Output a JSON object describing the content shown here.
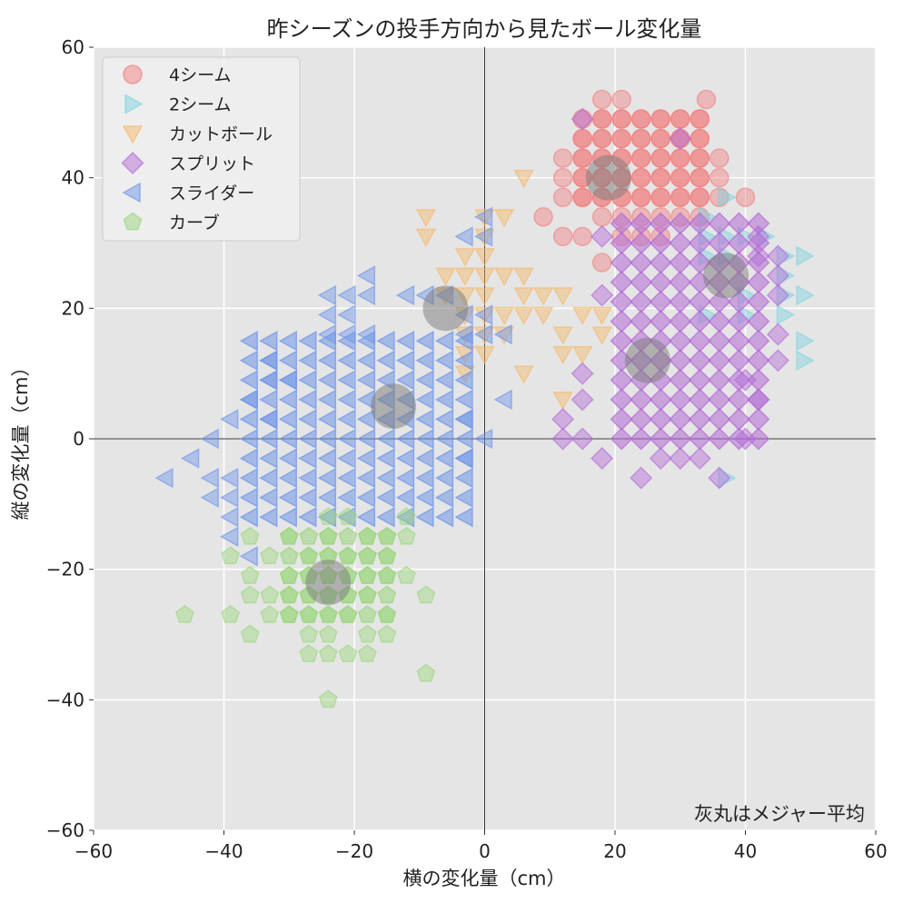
{
  "chart_data": {
    "type": "scatter",
    "title": "昨シーズンの投手方向から見たボール変化量",
    "xlabel": "横の変化量（cm）",
    "ylabel": "縦の変化量（cm）",
    "xlim": [
      -60,
      60
    ],
    "ylim": [
      -60,
      60
    ],
    "xticks": [
      -60,
      -40,
      -20,
      0,
      20,
      40,
      60
    ],
    "yticks": [
      -60,
      -40,
      -20,
      0,
      20,
      40,
      60
    ],
    "xtick_labels": [
      "−60",
      "−40",
      "−20",
      "0",
      "20",
      "40",
      "60"
    ],
    "ytick_labels": [
      "−60",
      "−40",
      "−20",
      "0",
      "20",
      "40",
      "60"
    ],
    "grid": true,
    "legend_position": "top-left",
    "annotation": "灰丸はメジャー平均",
    "series": [
      {
        "name": "4シーム",
        "marker": "circle",
        "color": "#f08080",
        "region": {
          "x": [
            12,
            38
          ],
          "y": [
            27,
            52
          ]
        },
        "points": [
          [
            18,
            52
          ],
          [
            21,
            52
          ],
          [
            34,
            52
          ],
          [
            18,
            49
          ],
          [
            21,
            49
          ],
          [
            24,
            49
          ],
          [
            27,
            49
          ],
          [
            30,
            49
          ],
          [
            33,
            49
          ],
          [
            15,
            46
          ],
          [
            18,
            46
          ],
          [
            21,
            46
          ],
          [
            24,
            46
          ],
          [
            27,
            46
          ],
          [
            30,
            46
          ],
          [
            33,
            46
          ],
          [
            12,
            43
          ],
          [
            15,
            43
          ],
          [
            18,
            43
          ],
          [
            21,
            43
          ],
          [
            24,
            43
          ],
          [
            27,
            43
          ],
          [
            30,
            43
          ],
          [
            33,
            43
          ],
          [
            36,
            43
          ],
          [
            12,
            40
          ],
          [
            15,
            40
          ],
          [
            18,
            40
          ],
          [
            21,
            40
          ],
          [
            24,
            40
          ],
          [
            27,
            40
          ],
          [
            30,
            40
          ],
          [
            33,
            40
          ],
          [
            36,
            40
          ],
          [
            12,
            37
          ],
          [
            15,
            37
          ],
          [
            18,
            37
          ],
          [
            21,
            37
          ],
          [
            24,
            37
          ],
          [
            27,
            37
          ],
          [
            30,
            37
          ],
          [
            33,
            37
          ],
          [
            36,
            37
          ],
          [
            40,
            37
          ],
          [
            18,
            34
          ],
          [
            21,
            34
          ],
          [
            24,
            34
          ],
          [
            27,
            34
          ],
          [
            30,
            34
          ],
          [
            33,
            34
          ],
          [
            9,
            34
          ],
          [
            12,
            31
          ],
          [
            15,
            31
          ],
          [
            21,
            31
          ],
          [
            24,
            31
          ],
          [
            27,
            31
          ],
          [
            18,
            27
          ]
        ],
        "dense_ranges": {
          "x": [
            15,
            33
          ],
          "y": [
            37,
            49
          ]
        }
      },
      {
        "name": "2シーム",
        "marker": "triangle-right",
        "color": "#7fd3e0",
        "region": {
          "x": [
            30,
            50
          ],
          "y": [
            -6,
            37
          ]
        },
        "points": [
          [
            37,
            37
          ],
          [
            34,
            34
          ],
          [
            34,
            31
          ],
          [
            37,
            31
          ],
          [
            40,
            31
          ],
          [
            43,
            31
          ],
          [
            46,
            28
          ],
          [
            49,
            28
          ],
          [
            34,
            28
          ],
          [
            37,
            28
          ],
          [
            46,
            25
          ],
          [
            40,
            22
          ],
          [
            46,
            22
          ],
          [
            49,
            22
          ],
          [
            46,
            19
          ],
          [
            49,
            15
          ],
          [
            49,
            12
          ],
          [
            37,
            -6
          ],
          [
            34,
            19
          ],
          [
            40,
            19
          ]
        ],
        "dense_ranges": {
          "x": [
            0,
            0
          ],
          "y": [
            0,
            0
          ]
        }
      },
      {
        "name": "カットボール",
        "marker": "triangle-down",
        "color": "#f5b869",
        "region": {
          "x": [
            -10,
            20
          ],
          "y": [
            6,
            40
          ]
        },
        "points": [
          [
            6,
            40
          ],
          [
            -9,
            34
          ],
          [
            3,
            34
          ],
          [
            0,
            34
          ],
          [
            -9,
            31
          ],
          [
            0,
            31
          ],
          [
            -3,
            28
          ],
          [
            0,
            28
          ],
          [
            -6,
            25
          ],
          [
            -3,
            25
          ],
          [
            0,
            25
          ],
          [
            3,
            25
          ],
          [
            6,
            25
          ],
          [
            -6,
            22
          ],
          [
            -3,
            22
          ],
          [
            0,
            22
          ],
          [
            6,
            22
          ],
          [
            9,
            22
          ],
          [
            12,
            22
          ],
          [
            -3,
            19
          ],
          [
            0,
            19
          ],
          [
            3,
            19
          ],
          [
            6,
            19
          ],
          [
            9,
            19
          ],
          [
            15,
            19
          ],
          [
            18,
            19
          ],
          [
            -3,
            16
          ],
          [
            0,
            16
          ],
          [
            3,
            16
          ],
          [
            12,
            16
          ],
          [
            18,
            16
          ],
          [
            -3,
            13
          ],
          [
            0,
            13
          ],
          [
            12,
            13
          ],
          [
            15,
            13
          ],
          [
            -3,
            10
          ],
          [
            6,
            10
          ],
          [
            12,
            6
          ]
        ],
        "dense_ranges": {
          "x": [
            0,
            0
          ],
          "y": [
            0,
            0
          ]
        }
      },
      {
        "name": "スプリット",
        "marker": "diamond",
        "color": "#b36bd6",
        "region": {
          "x": [
            12,
            45
          ],
          "y": [
            -6,
            49
          ]
        },
        "points": [
          [
            15,
            49
          ],
          [
            30,
            46
          ],
          [
            18,
            31
          ],
          [
            42,
            31
          ],
          [
            42,
            28
          ],
          [
            45,
            28
          ],
          [
            18,
            22
          ],
          [
            45,
            25
          ],
          [
            45,
            22
          ],
          [
            45,
            16
          ],
          [
            45,
            12
          ],
          [
            15,
            10
          ],
          [
            15,
            6
          ],
          [
            12,
            3
          ],
          [
            12,
            0
          ],
          [
            15,
            0
          ],
          [
            18,
            -3
          ],
          [
            24,
            -6
          ],
          [
            27,
            -3
          ],
          [
            30,
            -3
          ],
          [
            33,
            -3
          ],
          [
            36,
            -6
          ],
          [
            40,
            0
          ],
          [
            42,
            6
          ],
          [
            40,
            9
          ]
        ],
        "dense_ranges": {
          "x": [
            21,
            42
          ],
          "y": [
            0,
            34
          ]
        }
      },
      {
        "name": "スライダー",
        "marker": "triangle-left",
        "color": "#6f95e8",
        "region": {
          "x": [
            -49,
            3
          ],
          "y": [
            -18,
            34
          ]
        },
        "points": [
          [
            0,
            34
          ],
          [
            -3,
            31
          ],
          [
            0,
            31
          ],
          [
            -18,
            25
          ],
          [
            -21,
            22
          ],
          [
            -24,
            22
          ],
          [
            -18,
            22
          ],
          [
            -12,
            22
          ],
          [
            -9,
            22
          ],
          [
            -6,
            22
          ],
          [
            -24,
            19
          ],
          [
            -21,
            19
          ],
          [
            -3,
            19
          ],
          [
            0,
            19
          ],
          [
            -24,
            16
          ],
          [
            -21,
            16
          ],
          [
            -18,
            16
          ],
          [
            -3,
            16
          ],
          [
            0,
            16
          ],
          [
            3,
            16
          ],
          [
            -33,
            12
          ],
          [
            -30,
            9
          ],
          [
            -33,
            9
          ],
          [
            -36,
            6
          ],
          [
            -33,
            3
          ],
          [
            -39,
            3
          ],
          [
            -42,
            0
          ],
          [
            -45,
            -3
          ],
          [
            -49,
            -6
          ],
          [
            -42,
            -6
          ],
          [
            -42,
            -9
          ],
          [
            -39,
            -12
          ],
          [
            -39,
            -15
          ],
          [
            -36,
            -18
          ],
          [
            -3,
            -3
          ],
          [
            0,
            0
          ],
          [
            -3,
            3
          ],
          [
            3,
            6
          ],
          [
            -39,
            -6
          ],
          [
            -39,
            -9
          ]
        ],
        "dense_ranges": {
          "x": [
            -36,
            -3
          ],
          "y": [
            -12,
            16
          ]
        }
      },
      {
        "name": "カーブ",
        "marker": "pentagon",
        "color": "#9bd67d",
        "region": {
          "x": [
            -46,
            -9
          ],
          "y": [
            -40,
            -12
          ]
        },
        "points": [
          [
            -12,
            -12
          ],
          [
            -21,
            -12
          ],
          [
            -24,
            -12
          ],
          [
            -36,
            -15
          ],
          [
            -30,
            -15
          ],
          [
            -24,
            -15
          ],
          [
            -18,
            -15
          ],
          [
            -15,
            -15
          ],
          [
            -12,
            -15
          ],
          [
            -39,
            -18
          ],
          [
            -33,
            -18
          ],
          [
            -27,
            -18
          ],
          [
            -24,
            -18
          ],
          [
            -21,
            -18
          ],
          [
            -18,
            -18
          ],
          [
            -15,
            -18
          ],
          [
            -36,
            -21
          ],
          [
            -30,
            -21
          ],
          [
            -27,
            -21
          ],
          [
            -24,
            -21
          ],
          [
            -21,
            -21
          ],
          [
            -18,
            -21
          ],
          [
            -15,
            -21
          ],
          [
            -12,
            -21
          ],
          [
            -36,
            -24
          ],
          [
            -33,
            -24
          ],
          [
            -30,
            -24
          ],
          [
            -27,
            -24
          ],
          [
            -24,
            -24
          ],
          [
            -21,
            -24
          ],
          [
            -18,
            -24
          ],
          [
            -9,
            -24
          ],
          [
            -46,
            -27
          ],
          [
            -39,
            -27
          ],
          [
            -33,
            -27
          ],
          [
            -30,
            -27
          ],
          [
            -27,
            -27
          ],
          [
            -24,
            -27
          ],
          [
            -21,
            -27
          ],
          [
            -15,
            -27
          ],
          [
            -36,
            -30
          ],
          [
            -27,
            -30
          ],
          [
            -24,
            -30
          ],
          [
            -18,
            -30
          ],
          [
            -15,
            -30
          ],
          [
            -27,
            -33
          ],
          [
            -24,
            -33
          ],
          [
            -21,
            -33
          ],
          [
            -18,
            -33
          ],
          [
            -9,
            -36
          ],
          [
            -24,
            -40
          ]
        ],
        "dense_ranges": {
          "x": [
            -30,
            -15
          ],
          "y": [
            -27,
            -15
          ]
        }
      }
    ],
    "averages": [
      {
        "x": 19,
        "y": 40
      },
      {
        "x": 37,
        "y": 25
      },
      {
        "x": 25,
        "y": 12
      },
      {
        "x": -6,
        "y": 20
      },
      {
        "x": -14,
        "y": 5
      },
      {
        "x": -24,
        "y": -22
      }
    ]
  }
}
